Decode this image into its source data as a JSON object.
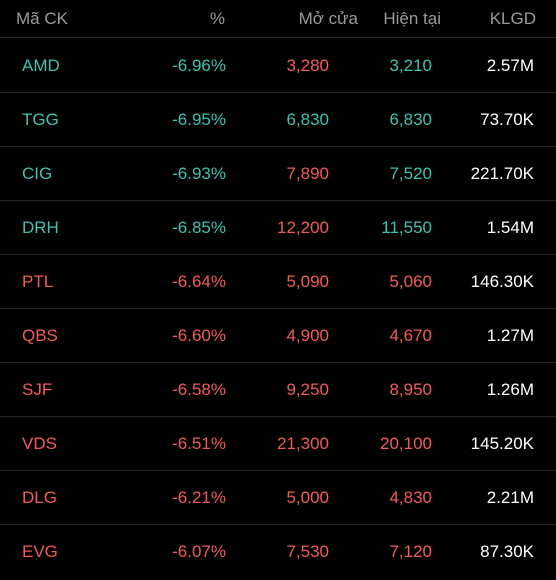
{
  "header": {
    "symbol": "Mã CK",
    "percent": "%",
    "open": "Mở cửa",
    "current": "Hiện tại",
    "volume": "KLGD"
  },
  "colors": {
    "background": "#000000",
    "header_text": "#9a9a9a",
    "teal": "#3fc2b0",
    "red": "#f15b5b",
    "volume": "#ffffff"
  },
  "rows": [
    {
      "symbol": "AMD",
      "percent": "-6.96%",
      "open": "3,280",
      "current": "3,210",
      "volume": "2.57M",
      "symbol_color": "#3fc2b0",
      "percent_color": "#3fc2b0",
      "open_color": "#f15b5b",
      "current_color": "#3fc2b0"
    },
    {
      "symbol": "TGG",
      "percent": "-6.95%",
      "open": "6,830",
      "current": "6,830",
      "volume": "73.70K",
      "symbol_color": "#3fc2b0",
      "percent_color": "#3fc2b0",
      "open_color": "#3fc2b0",
      "current_color": "#3fc2b0"
    },
    {
      "symbol": "CIG",
      "percent": "-6.93%",
      "open": "7,890",
      "current": "7,520",
      "volume": "221.70K",
      "symbol_color": "#3fc2b0",
      "percent_color": "#3fc2b0",
      "open_color": "#f15b5b",
      "current_color": "#3fc2b0"
    },
    {
      "symbol": "DRH",
      "percent": "-6.85%",
      "open": "12,200",
      "current": "11,550",
      "volume": "1.54M",
      "symbol_color": "#3fc2b0",
      "percent_color": "#3fc2b0",
      "open_color": "#f15b5b",
      "current_color": "#3fc2b0"
    },
    {
      "symbol": "PTL",
      "percent": "-6.64%",
      "open": "5,090",
      "current": "5,060",
      "volume": "146.30K",
      "symbol_color": "#f15b5b",
      "percent_color": "#f15b5b",
      "open_color": "#f15b5b",
      "current_color": "#f15b5b"
    },
    {
      "symbol": "QBS",
      "percent": "-6.60%",
      "open": "4,900",
      "current": "4,670",
      "volume": "1.27M",
      "symbol_color": "#f15b5b",
      "percent_color": "#f15b5b",
      "open_color": "#f15b5b",
      "current_color": "#f15b5b"
    },
    {
      "symbol": "SJF",
      "percent": "-6.58%",
      "open": "9,250",
      "current": "8,950",
      "volume": "1.26M",
      "symbol_color": "#f15b5b",
      "percent_color": "#f15b5b",
      "open_color": "#f15b5b",
      "current_color": "#f15b5b"
    },
    {
      "symbol": "VDS",
      "percent": "-6.51%",
      "open": "21,300",
      "current": "20,100",
      "volume": "145.20K",
      "symbol_color": "#f15b5b",
      "percent_color": "#f15b5b",
      "open_color": "#f15b5b",
      "current_color": "#f15b5b"
    },
    {
      "symbol": "DLG",
      "percent": "-6.21%",
      "open": "5,000",
      "current": "4,830",
      "volume": "2.21M",
      "symbol_color": "#f15b5b",
      "percent_color": "#f15b5b",
      "open_color": "#f15b5b",
      "current_color": "#f15b5b"
    },
    {
      "symbol": "EVG",
      "percent": "-6.07%",
      "open": "7,530",
      "current": "7,120",
      "volume": "87.30K",
      "symbol_color": "#f15b5b",
      "percent_color": "#f15b5b",
      "open_color": "#f15b5b",
      "current_color": "#f15b5b"
    }
  ]
}
